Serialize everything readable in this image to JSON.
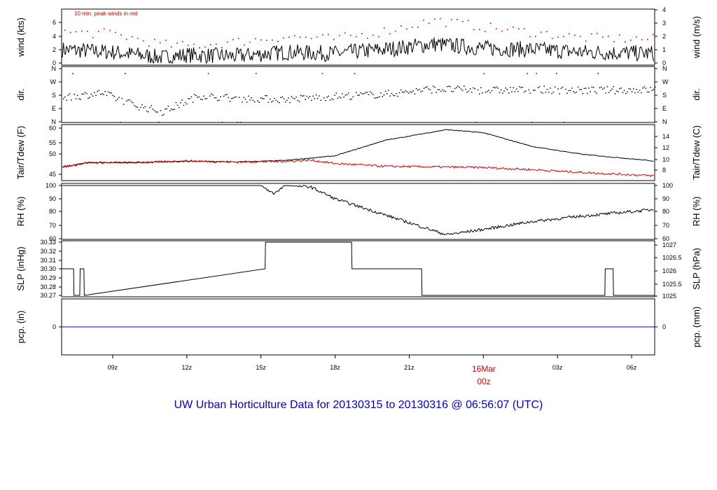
{
  "title": "UW Urban Horticulture Data for 20130315  to  20130316 @ 06:56:07  (UTC)",
  "colors": {
    "title": "#0000cc",
    "series_main": "#000000",
    "series_red": "#dd0000",
    "precip": "#0000cc",
    "date_label": "#dd0000"
  },
  "time_axis": {
    "start": "2013-03-15T06:56Z",
    "end": "2013-03-16T06:56Z",
    "tick_labels": [
      "09z",
      "12z",
      "15z",
      "18z",
      "21z",
      "00z",
      "03z",
      "06z"
    ],
    "date_label": "16Mar",
    "date_sub_label": "00z"
  },
  "chart_data": [
    {
      "type": "line",
      "panel": "wind",
      "ylabel": "wind (kts)",
      "ylabel_right": "wind (m/s)",
      "ylim": [
        0,
        8
      ],
      "yticks": [
        "0",
        "2",
        "4",
        "6"
      ],
      "yticks_right": [
        "0",
        "1",
        "2",
        "3",
        "4"
      ],
      "annotation": "10 min. peak winds in red",
      "series": [
        {
          "name": "wind",
          "x": [
            "2013-03-15T06:56Z",
            "2013-03-15T09:00Z",
            "2013-03-15T11:00Z",
            "2013-03-15T12:00Z",
            "2013-03-15T14:00Z",
            "2013-03-15T16:00Z",
            "2013-03-15T18:00Z",
            "2013-03-15T20:00Z",
            "2013-03-15T22:00Z",
            "2013-03-16T00:00Z",
            "2013-03-16T02:00Z",
            "2013-03-16T04:00Z",
            "2013-03-16T06:56Z"
          ],
          "values": [
            2.0,
            1.6,
            0.8,
            1.2,
            1.0,
            1.6,
            1.4,
            2.0,
            2.8,
            2.2,
            2.0,
            1.6,
            1.4
          ]
        },
        {
          "name": "10 min. peak winds",
          "x": [
            "2013-03-15T06:56Z",
            "2013-03-15T09:00Z",
            "2013-03-15T11:00Z",
            "2013-03-15T12:00Z",
            "2013-03-15T14:00Z",
            "2013-03-15T16:00Z",
            "2013-03-15T18:00Z",
            "2013-03-15T20:00Z",
            "2013-03-15T22:00Z",
            "2013-03-16T00:00Z",
            "2013-03-16T02:00Z",
            "2013-03-16T04:00Z",
            "2013-03-16T06:56Z"
          ],
          "values": [
            4.6,
            4.4,
            2.8,
            2.6,
            3.2,
            4.0,
            3.6,
            4.8,
            6.4,
            5.4,
            4.6,
            3.8,
            3.6
          ]
        }
      ]
    },
    {
      "type": "scatter",
      "panel": "dir",
      "ylabel": "dir.",
      "ylabel_right": "dir.",
      "ylim": [
        0,
        360
      ],
      "yticks": [
        "N",
        "E",
        "S",
        "W",
        "N"
      ],
      "series": [
        {
          "name": "dir",
          "x": [
            "2013-03-15T06:56Z",
            "2013-03-15T08:30Z",
            "2013-03-15T10:00Z",
            "2013-03-15T11:00Z",
            "2013-03-15T12:30Z",
            "2013-03-15T14:00Z",
            "2013-03-15T16:00Z",
            "2013-03-15T18:00Z",
            "2013-03-15T20:00Z",
            "2013-03-15T22:00Z",
            "2013-03-16T00:00Z",
            "2013-03-16T02:00Z",
            "2013-03-16T04:00Z",
            "2013-03-16T06:56Z"
          ],
          "values": [
            160,
            200,
            110,
            70,
            180,
            160,
            155,
            175,
            190,
            225,
            215,
            220,
            215,
            220
          ]
        }
      ]
    },
    {
      "type": "line",
      "panel": "temperature",
      "ylabel": "Tair/Tdew (F)",
      "ylabel_right": "Tair/Tdew (C)",
      "ylim": [
        44,
        60.5
      ],
      "yticks": [
        "45",
        "50",
        "55",
        "60"
      ],
      "yticks_right": [
        "8",
        "10",
        "12",
        "14"
      ],
      "series": [
        {
          "name": "Tair",
          "x": [
            "2013-03-15T06:56Z",
            "2013-03-15T08:00Z",
            "2013-03-15T10:00Z",
            "2013-03-15T12:00Z",
            "2013-03-15T14:00Z",
            "2013-03-15T16:00Z",
            "2013-03-15T18:00Z",
            "2013-03-15T20:00Z",
            "2013-03-15T22:30Z",
            "2013-03-16T00:00Z",
            "2013-03-16T02:00Z",
            "2013-03-16T04:00Z",
            "2013-03-16T06:56Z"
          ],
          "values": [
            47.3,
            48.8,
            48.8,
            49.3,
            49.0,
            49.5,
            51.0,
            56.0,
            59.5,
            58.5,
            54.0,
            51.5,
            49.3
          ]
        },
        {
          "name": "Tdew",
          "x": [
            "2013-03-15T06:56Z",
            "2013-03-15T08:00Z",
            "2013-03-15T10:00Z",
            "2013-03-15T12:00Z",
            "2013-03-15T14:00Z",
            "2013-03-15T16:00Z",
            "2013-03-15T17:00Z",
            "2013-03-15T18:00Z",
            "2013-03-15T20:00Z",
            "2013-03-15T22:00Z",
            "2013-03-16T00:00Z",
            "2013-03-16T02:00Z",
            "2013-03-16T04:00Z",
            "2013-03-16T06:56Z"
          ],
          "values": [
            47.3,
            48.8,
            48.8,
            49.3,
            49.0,
            49.2,
            49.6,
            48.5,
            47.6,
            47.4,
            47.2,
            46.5,
            45.6,
            44.5
          ]
        }
      ]
    },
    {
      "type": "line",
      "panel": "rh",
      "ylabel": "RH (%)",
      "ylabel_right": "RH (%)",
      "ylim": [
        60,
        100
      ],
      "yticks": [
        "60",
        "70",
        "80",
        "90",
        "100"
      ],
      "series": [
        {
          "name": "RH",
          "x": [
            "2013-03-15T06:56Z",
            "2013-03-15T15:00Z",
            "2013-03-15T15:30Z",
            "2013-03-15T16:00Z",
            "2013-03-15T17:00Z",
            "2013-03-15T18:00Z",
            "2013-03-15T19:00Z",
            "2013-03-15T20:00Z",
            "2013-03-15T22:30Z",
            "2013-03-16T00:00Z",
            "2013-03-16T02:00Z",
            "2013-03-16T04:00Z",
            "2013-03-16T06:56Z"
          ],
          "values": [
            100,
            100,
            94,
            100,
            99,
            90,
            84,
            78,
            63,
            67,
            73,
            77,
            82
          ]
        }
      ]
    },
    {
      "type": "line",
      "panel": "slp",
      "ylabel": "SLP (inHg)",
      "ylabel_right": "SLP (hPa)",
      "ylim": [
        30.27,
        30.33
      ],
      "yticks": [
        "30.27",
        "30.28",
        "30.29",
        "30.30",
        "30.31",
        "30.32",
        "30.33"
      ],
      "yticks_right": [
        "1025",
        "1025.5",
        "1026",
        "1026.5",
        "1027"
      ],
      "series": [
        {
          "name": "SLP",
          "x": [
            "2013-03-15T06:56Z",
            "2013-03-15T07:25Z",
            "2013-03-15T07:26Z",
            "2013-03-15T07:40Z",
            "2013-03-15T07:41Z",
            "2013-03-15T07:50Z",
            "2013-03-15T07:51Z",
            "2013-03-15T15:10Z",
            "2013-03-15T15:11Z",
            "2013-03-15T18:40Z",
            "2013-03-15T18:41Z",
            "2013-03-15T21:30Z",
            "2013-03-15T21:31Z",
            "2013-03-16T04:55Z",
            "2013-03-16T04:56Z",
            "2013-03-16T05:15Z",
            "2013-03-16T05:16Z",
            "2013-03-16T06:56Z"
          ],
          "values": [
            30.3,
            30.3,
            30.27,
            30.27,
            30.3,
            30.3,
            30.27,
            30.3,
            30.33,
            30.33,
            30.3,
            30.3,
            30.27,
            30.27,
            30.3,
            30.3,
            30.27,
            30.27
          ]
        }
      ]
    },
    {
      "type": "line",
      "panel": "precip",
      "ylabel": "pcp. (in)",
      "ylabel_right": "pcp. (mm)",
      "yticks": [
        "0"
      ],
      "yticks_right": [
        "0"
      ],
      "series": [
        {
          "name": "pcp",
          "x": [
            "2013-03-15T06:56Z",
            "2013-03-16T06:56Z"
          ],
          "values": [
            0,
            0
          ]
        }
      ]
    }
  ]
}
